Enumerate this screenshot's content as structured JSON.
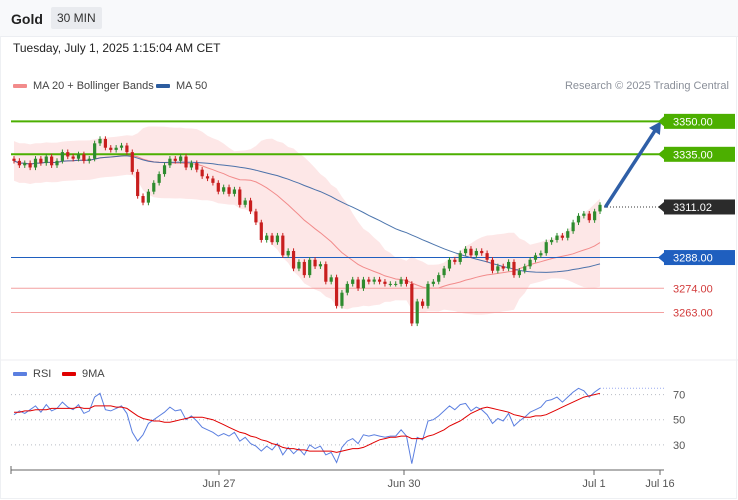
{
  "header": {
    "symbol": "Gold",
    "timeframe": "30 MIN",
    "datetime": "Tuesday, July 1, 2025 1:15:04 AM CET"
  },
  "credit": "Research © 2025 Trading Central",
  "legend_top": [
    {
      "label": "MA 20 + Bollinger Bands",
      "color": "#f28b8b"
    },
    {
      "label": "MA 50",
      "color": "#2d5d9f"
    }
  ],
  "legend_rsi": [
    {
      "label": "RSI",
      "color": "#5b7fe0"
    },
    {
      "label": "9MA",
      "color": "#e00000"
    }
  ],
  "colors": {
    "up": "#2e8b2e",
    "down": "#c81e1e",
    "resistance": "#4caf00",
    "pivot": "#1f5fbf",
    "support": "#f4a0a0",
    "arrow": "#2f5fa7"
  },
  "chart_data": [
    {
      "type": "candlestick",
      "ylim": [
        3245,
        3362
      ],
      "x_ticks": [
        "Jun 27",
        "Jun 30",
        "Jul 1",
        "Jul 16"
      ],
      "current_price": "3311.02",
      "levels": [
        {
          "value": 3350,
          "label": "3350.00",
          "kind": "resistance"
        },
        {
          "value": 3335,
          "label": "3335.00",
          "kind": "resistance"
        },
        {
          "value": 3288,
          "label": "3288.00",
          "kind": "pivot"
        },
        {
          "value": 3274,
          "label": "3274.00",
          "kind": "support"
        },
        {
          "value": 3263,
          "label": "3263.00",
          "kind": "support"
        }
      ],
      "target_arrow": {
        "from": 3311,
        "to": 3350
      },
      "close": [
        3332,
        3330,
        3331,
        3329,
        3333,
        3331,
        3334,
        3330,
        3332,
        3336,
        3334,
        3333,
        3335,
        3332,
        3333,
        3340,
        3342,
        3338,
        3337,
        3338,
        3339,
        3336,
        3327,
        3316,
        3313,
        3318,
        3322,
        3326,
        3330,
        3333,
        3332,
        3334,
        3329,
        3331,
        3328,
        3325,
        3324,
        3322,
        3318,
        3320,
        3317,
        3319,
        3312,
        3314,
        3309,
        3304,
        3296,
        3298,
        3295,
        3298,
        3289,
        3291,
        3283,
        3286,
        3280,
        3287,
        3284,
        3285,
        3277,
        3279,
        3266,
        3272,
        3276,
        3278,
        3274,
        3278,
        3277,
        3278,
        3277,
        3276,
        3276,
        3276,
        3278,
        3276,
        3258,
        3268,
        3266,
        3276,
        3277,
        3280,
        3283,
        3287,
        3286,
        3290,
        3292,
        3289,
        3291,
        3290,
        3287,
        3282,
        3284,
        3283,
        3286,
        3280,
        3282,
        3284,
        3287,
        3289,
        3290,
        3295,
        3296,
        3298,
        3297,
        3300,
        3304,
        3307,
        3308,
        3305,
        3309,
        3312
      ]
    },
    {
      "type": "line",
      "series": [
        {
          "name": "RSI",
          "values": [
            54,
            57,
            55,
            58,
            61,
            56,
            62,
            57,
            59,
            64,
            60,
            58,
            62,
            55,
            57,
            68,
            71,
            58,
            57,
            59,
            61,
            55,
            40,
            33,
            38,
            47,
            50,
            53,
            56,
            60,
            57,
            58,
            50,
            53,
            49,
            44,
            42,
            40,
            37,
            39,
            37,
            40,
            33,
            36,
            31,
            29,
            25,
            29,
            26,
            31,
            22,
            28,
            23,
            27,
            22,
            30,
            27,
            29,
            22,
            24,
            16,
            28,
            33,
            35,
            31,
            38,
            37,
            38,
            37,
            36,
            37,
            37,
            42,
            37,
            15,
            36,
            34,
            49,
            50,
            53,
            57,
            61,
            58,
            62,
            63,
            57,
            60,
            58,
            54,
            47,
            51,
            49,
            55,
            45,
            49,
            52,
            56,
            58,
            60,
            65,
            66,
            68,
            64,
            68,
            72,
            75,
            73,
            68,
            72,
            75
          ]
        },
        {
          "name": "9MA",
          "values": [
            56,
            56,
            57,
            57,
            58,
            58,
            58,
            59,
            59,
            59,
            59,
            59,
            60,
            59,
            59,
            61,
            61,
            61,
            61,
            60,
            60,
            59,
            56,
            53,
            51,
            50,
            49,
            49,
            48,
            48,
            49,
            50,
            51,
            52,
            52,
            52,
            51,
            50,
            48,
            46,
            44,
            42,
            40,
            39,
            37,
            36,
            34,
            33,
            31,
            30,
            28,
            27,
            27,
            26,
            26,
            25,
            25,
            25,
            25,
            25,
            24,
            25,
            26,
            27,
            27,
            28,
            30,
            32,
            34,
            35,
            36,
            36,
            37,
            37,
            35,
            35,
            35,
            37,
            38,
            40,
            42,
            45,
            47,
            49,
            52,
            55,
            57,
            59,
            60,
            59,
            58,
            57,
            56,
            54,
            53,
            52,
            52,
            53,
            53,
            54,
            56,
            58,
            60,
            62,
            64,
            66,
            68,
            69,
            70,
            71
          ]
        }
      ],
      "y_ticks": [
        70,
        50,
        30
      ],
      "ylim": [
        10,
        80
      ]
    }
  ]
}
